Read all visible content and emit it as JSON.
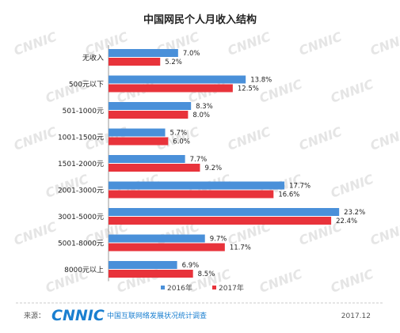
{
  "title": "中国网民个人月收入结构",
  "chart_data": {
    "type": "bar",
    "orientation": "horizontal",
    "title": "中国网民个人月收入结构",
    "categories": [
      "无收入",
      "500元以下",
      "501-1000元",
      "1001-1500元",
      "1501-2000元",
      "2001-3000元",
      "3001-5000元",
      "5001-8000元",
      "8000元以上"
    ],
    "series": [
      {
        "name": "2016年",
        "color": "#4a90d9",
        "values": [
          7.0,
          13.8,
          8.3,
          5.7,
          7.7,
          17.7,
          23.2,
          9.7,
          6.9
        ]
      },
      {
        "name": "2017年",
        "color": "#e8333b",
        "values": [
          5.2,
          12.5,
          8.0,
          6.0,
          9.2,
          16.6,
          22.4,
          11.7,
          8.5
        ]
      }
    ],
    "value_suffix": "%",
    "legend_position": "bottom",
    "grid": false
  },
  "footer": {
    "source_label": "来源：",
    "brand": "CNNIC",
    "brand_sub": "中国互联网络发展状况统计调查",
    "date": "2017.12"
  },
  "watermark": "CNNIC"
}
